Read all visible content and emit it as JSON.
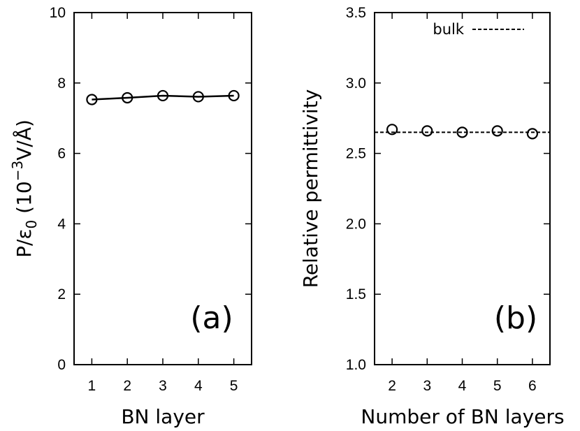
{
  "chart_data": [
    {
      "type": "line",
      "panel_label": "(a)",
      "xlabel": "BN layer",
      "ylabel_main": "P/ε",
      "ylabel_sub": "0",
      "ylabel_pre": "(10",
      "ylabel_sup": "−3",
      "ylabel_post": "V/Å)",
      "x": [
        1,
        2,
        3,
        4,
        5
      ],
      "series": [
        {
          "values": [
            7.53,
            7.58,
            7.64,
            7.61,
            7.64
          ],
          "marker": "circle",
          "line": "solid"
        }
      ],
      "xlim": [
        0.5,
        5.5
      ],
      "ylim": [
        0,
        10
      ],
      "xticks": [
        "1",
        "2",
        "3",
        "4",
        "5"
      ],
      "yticks": [
        "0",
        "2",
        "4",
        "6",
        "8",
        "10"
      ],
      "grid": false
    },
    {
      "type": "scatter",
      "panel_label": "(b)",
      "xlabel": "Number of BN layers",
      "ylabel": "Relative permittivity",
      "x": [
        2,
        3,
        4,
        5,
        6
      ],
      "series": [
        {
          "values": [
            2.67,
            2.66,
            2.65,
            2.66,
            2.64
          ],
          "marker": "circle"
        }
      ],
      "reference": {
        "name": "bulk",
        "value": 2.65,
        "line": "dashed"
      },
      "legend_position": "top-right",
      "xlim": [
        1.5,
        6.5
      ],
      "ylim": [
        1.0,
        3.5
      ],
      "xticks": [
        "2",
        "3",
        "4",
        "5",
        "6"
      ],
      "yticks": [
        "1.0",
        "1.5",
        "2.0",
        "2.5",
        "3.0",
        "3.5"
      ],
      "grid": false
    }
  ]
}
